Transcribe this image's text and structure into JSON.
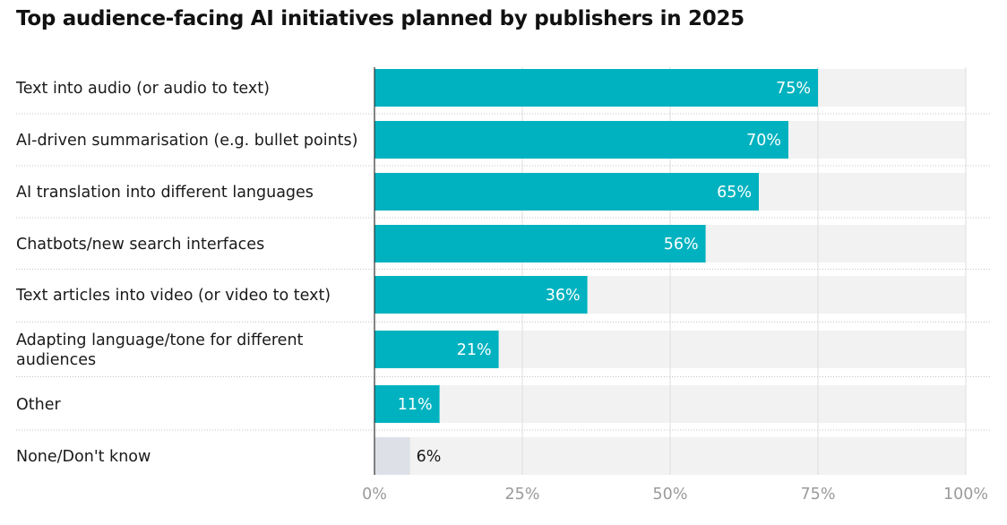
{
  "chart_data": {
    "type": "bar",
    "orientation": "horizontal",
    "title": "Top audience-facing AI initiatives planned by publishers in 2025",
    "categories": [
      "Text into audio (or audio to text)",
      "AI-driven summarisation (e.g. bullet points)",
      "AI translation into different languages",
      "Chatbots/new search interfaces",
      "Text articles into video (or video to text)",
      "Adapting language/tone for different audiences",
      "Other",
      "None/Don't know"
    ],
    "category_lines": [
      [
        "Text into audio (or audio to text)"
      ],
      [
        "AI-driven summarisation (e.g. bullet points)"
      ],
      [
        "AI translation into different languages"
      ],
      [
        "Chatbots/new search interfaces"
      ],
      [
        "Text articles into video (or video to text)"
      ],
      [
        "Adapting language/tone for different",
        "audiences"
      ],
      [
        "Other"
      ],
      [
        "None/Don't know"
      ]
    ],
    "values": [
      75,
      70,
      65,
      56,
      36,
      21,
      11,
      6
    ],
    "value_labels": [
      "75%",
      "70%",
      "65%",
      "56%",
      "36%",
      "21%",
      "11%",
      "6%"
    ],
    "xlim": [
      0,
      100
    ],
    "x_ticks": [
      0,
      25,
      50,
      75,
      100
    ],
    "x_tick_labels": [
      "0%",
      "25%",
      "50%",
      "75%",
      "100%"
    ],
    "xlabel": "",
    "ylabel": "",
    "grid": true,
    "legend": "none",
    "colors": {
      "bar": "#00b2bf",
      "bar_muted": "#dde1e7",
      "track": "#f2f2f2",
      "gridline": "#dddddd",
      "separator": "#c4c4c4",
      "axis": "#333333",
      "label_inside": "#ffffff",
      "label_outside": "#1a1a1a"
    },
    "muted_categories": [
      "None/Don't know"
    ]
  }
}
